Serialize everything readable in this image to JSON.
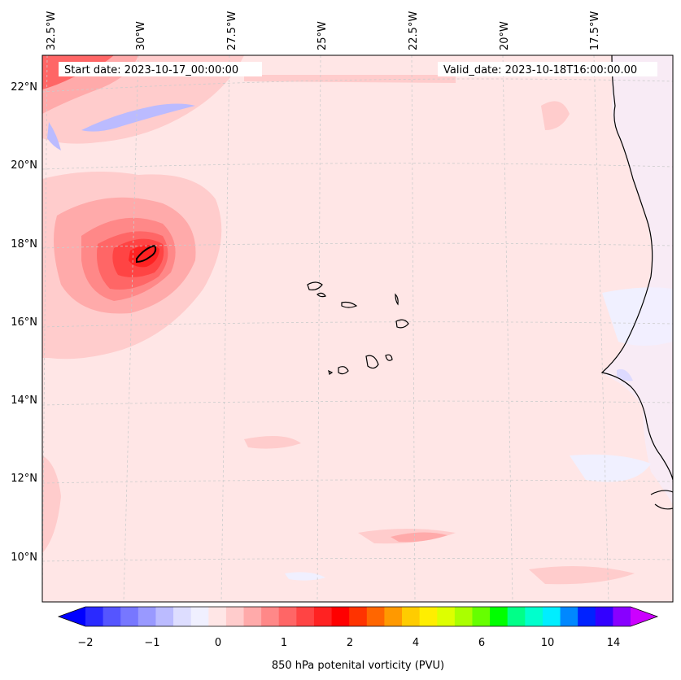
{
  "map": {
    "start_date": "Start date: 2023-10-17_00:00:00",
    "valid_date": "Valid_date: 2023-10-18T16:00:00.00",
    "lon_labels": [
      "32.5°W",
      "30°W",
      "27.5°W",
      "25°W",
      "22.5°W",
      "20°W",
      "17.5°W"
    ],
    "lat_labels": [
      "22°N",
      "20°N",
      "18°N",
      "16°N",
      "14°N",
      "12°N",
      "10°N"
    ]
  },
  "colorbar": {
    "label": "850 hPa potenital vorticity (PVU)",
    "tick_labels": [
      "−2",
      "−1",
      "0",
      "1",
      "2",
      "4",
      "6",
      "10",
      "14"
    ],
    "colors": [
      "#0000ff",
      "#2a2aff",
      "#5555ff",
      "#7777ff",
      "#9999ff",
      "#bbbbff",
      "#ddddff",
      "#f0f0ff",
      "#ffe6e6",
      "#ffcccc",
      "#ffaaaa",
      "#ff8888",
      "#ff6666",
      "#ff4444",
      "#ff2222",
      "#ff0000",
      "#ff3300",
      "#ff6600",
      "#ff9900",
      "#ffcc00",
      "#ffee00",
      "#ddff00",
      "#aaff00",
      "#66ff00",
      "#00ff00",
      "#00ff88",
      "#00ffcc",
      "#00eeff",
      "#0088ff",
      "#0022ff",
      "#3300ff",
      "#8800ff",
      "#cc00ff"
    ]
  }
}
